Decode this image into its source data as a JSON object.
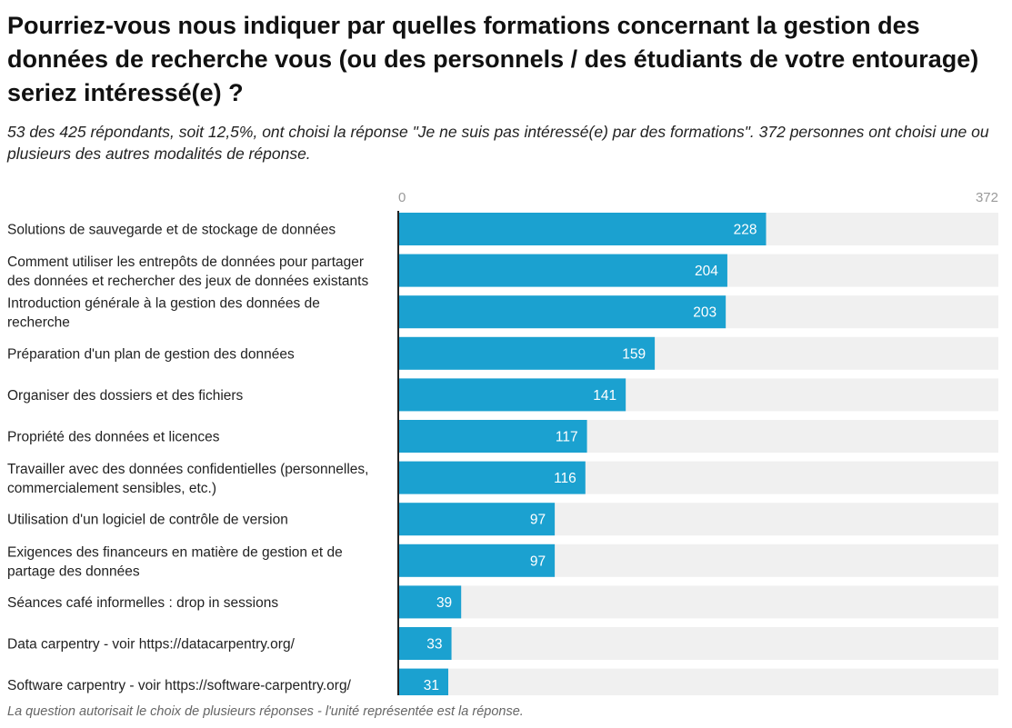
{
  "header": {
    "title": "Pourriez-vous nous indiquer par quelles formations concernant la gestion des données de recherche vous (ou des personnels / des étudiants de votre entourage) seriez intéressé(e) ?",
    "subtitle": "53 des 425 répondants, soit 12,5%, ont choisi la réponse \"Je ne suis pas intéressé(e) par des formations\". 372 personnes ont choisi une ou plusieurs des autres modalités de réponse."
  },
  "notes": "La question autorisait le choix de plusieurs réponses - l'unité représentée est la réponse.",
  "colors": {
    "bar": "#1ba1d0",
    "track": "#f0f0f0",
    "axis": "#222222"
  },
  "chart_data": {
    "type": "bar",
    "orientation": "horizontal",
    "xlim": [
      0,
      372
    ],
    "tick_labels": [
      "0",
      "372"
    ],
    "categories": [
      [
        "Solutions de sauvegarde et de stockage de données"
      ],
      [
        "Comment utiliser les entrepôts de données pour partager",
        "des données et rechercher des jeux de données existants"
      ],
      [
        "Introduction générale à la gestion des données de",
        "recherche"
      ],
      [
        "Préparation d'un plan de gestion des données"
      ],
      [
        "Organiser des dossiers et des fichiers"
      ],
      [
        "Propriété des données et licences"
      ],
      [
        "Travailler avec des données confidentielles (personnelles,",
        "commercialement sensibles, etc.)"
      ],
      [
        "Utilisation d'un logiciel de contrôle de version"
      ],
      [
        "Exigences des financeurs en matière de gestion et de",
        "partage des données"
      ],
      [
        "Séances café informelles : drop in sessions"
      ],
      [
        "Data carpentry - voir https://datacarpentry.org/"
      ],
      [
        "Software carpentry - voir https://software-carpentry.org/"
      ]
    ],
    "values": [
      228,
      204,
      203,
      159,
      141,
      117,
      116,
      97,
      97,
      39,
      33,
      31
    ]
  }
}
